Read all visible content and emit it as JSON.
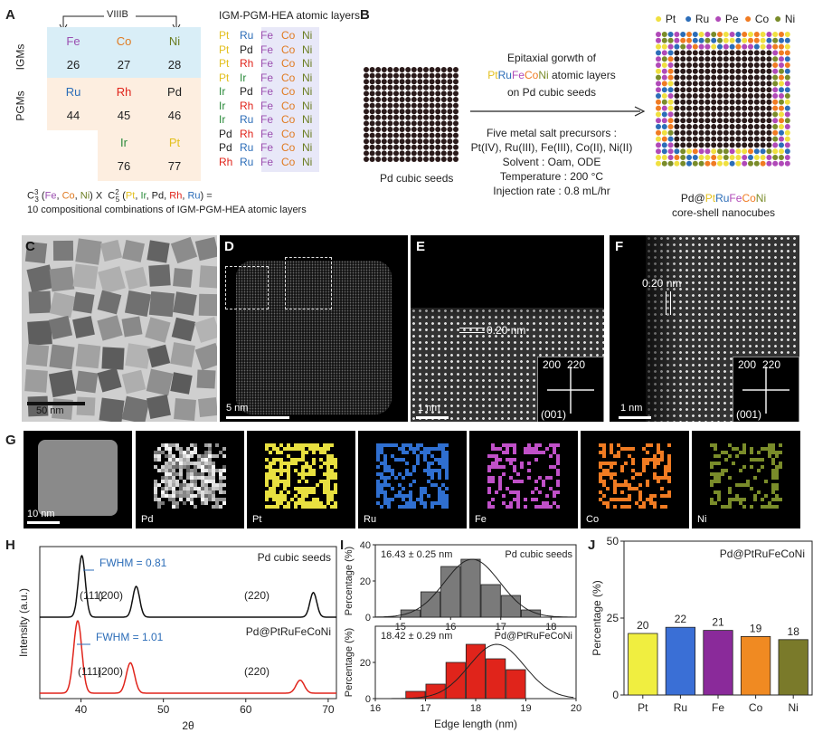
{
  "panels": {
    "A": {
      "label": "A",
      "group_label": "VIIIB",
      "row_labels": [
        "IGMs",
        "PGMs"
      ],
      "elements": [
        {
          "sym": "Fe",
          "num": "26",
          "color": "#9b4fb0",
          "bg": "#d9eef7"
        },
        {
          "sym": "Co",
          "num": "27",
          "color": "#e07b22",
          "bg": "#d9eef7"
        },
        {
          "sym": "Ni",
          "num": "28",
          "color": "#6b7d22",
          "bg": "#d9eef7"
        },
        {
          "sym": "Ru",
          "num": "44",
          "color": "#2c6db8",
          "bg": "#fdeee0"
        },
        {
          "sym": "Rh",
          "num": "45",
          "color": "#e0241b",
          "bg": "#fdeee0"
        },
        {
          "sym": "Pd",
          "num": "46",
          "color": "#222222",
          "bg": "#fdeee0"
        },
        {
          "sym": "Ir",
          "num": "76",
          "color": "#2a8a3a",
          "bg": "#fdeee0"
        },
        {
          "sym": "Pt",
          "num": "77",
          "color": "#e3c020",
          "bg": "#fdeee0"
        }
      ],
      "layers_title": "IGM-PGM-HEA atomic layers",
      "layers": [
        [
          "Pt",
          "Ru"
        ],
        [
          "Pt",
          "Pd"
        ],
        [
          "Pt",
          "Rh"
        ],
        [
          "Pt",
          "Ir"
        ],
        [
          "Ir",
          "Pd"
        ],
        [
          "Ir",
          "Rh"
        ],
        [
          "Ir",
          "Ru"
        ],
        [
          "Pd",
          "Rh"
        ],
        [
          "Pd",
          "Ru"
        ],
        [
          "Rh",
          "Ru"
        ]
      ],
      "layer_suffix": [
        "Fe",
        "Co",
        "Ni"
      ],
      "formula_line": "C₃³ (Fe, Co, Ni) X C₅² (Pt, Ir, Pd, Rh, Ru) =",
      "formula_line2": "10 compositional combinations of IGM-PGM-HEA atomic layers"
    },
    "B": {
      "label": "B",
      "legend": [
        "Pt",
        "Ru",
        "Pe",
        "Co",
        "Ni"
      ],
      "seed_caption": "Pd cubic seeds",
      "arrow_text1": "Epitaxial gorwth of",
      "arrow_text2": "PtRuFeCoNi atomic layers",
      "arrow_text3": "on Pd cubic seeds",
      "conditions": [
        "Five metal salt precursors :",
        "Pt(IV), Ru(III), Fe(III), Co(II), Ni(II)",
        "Solvent : Oam, ODE",
        "Temperature : 200 °C",
        "Injection rate : 0.8 mL/hr"
      ],
      "product_caption1": "Pd@PtRuFeCoNi",
      "product_caption2": "core-shell nanocubes"
    },
    "C": {
      "label": "C",
      "scale": "50 nm"
    },
    "D": {
      "label": "D",
      "scale": "5 nm"
    },
    "E": {
      "label": "E",
      "scale": "1 nm",
      "spacing": "0.20 nm",
      "fft": [
        "200",
        "220",
        "(001)"
      ]
    },
    "F": {
      "label": "F",
      "scale": "1 nm",
      "spacing": "0.20 nm",
      "fft": [
        "200",
        "220",
        "(001)"
      ]
    },
    "G": {
      "label": "G",
      "scale": "10 nm",
      "maps": [
        "Pd",
        "Pt",
        "Ru",
        "Fe",
        "Co",
        "Ni"
      ]
    },
    "H": {
      "label": "H"
    },
    "I": {
      "label": "I"
    },
    "J": {
      "label": "J"
    }
  },
  "colors": {
    "Pt": "#f0e040",
    "Ru": "#2c6db8",
    "Fe": "#b049b8",
    "Co": "#f07b22",
    "Ni": "#7a8c2a",
    "Pd": "#222222",
    "Rh": "#e0241b",
    "Ir": "#2a8a3a"
  },
  "chart_data": [
    {
      "type": "line",
      "panel": "H",
      "xlabel": "2θ",
      "ylabel": "Intensity (a.u.)",
      "xlim": [
        35,
        71
      ],
      "xticks": [
        "40",
        "50",
        "60",
        "70"
      ],
      "series": [
        {
          "name": "Pd cubic seeds",
          "color": "#111111",
          "peaks": [
            {
              "x": 40.1,
              "h": 1.0
            },
            {
              "x": 46.7,
              "h": 0.5
            },
            {
              "x": 68.2,
              "h": 0.4
            }
          ],
          "fwhm": "FWHM = 0.81"
        },
        {
          "name": "Pd@PtRuFeCoNi",
          "color": "#e0241b",
          "peaks": [
            {
              "x": 39.6,
              "h": 1.0
            },
            {
              "x": 46.0,
              "h": 0.42
            },
            {
              "x": 66.6,
              "h": 0.18
            }
          ],
          "fwhm": "FWHM = 1.01"
        }
      ],
      "peak_labels": [
        "(111)",
        "(200)",
        "(220)"
      ]
    },
    {
      "type": "bar",
      "panel": "I",
      "xlabel": "Edge length (nm)",
      "ylabel": "Percentage (%)",
      "subplots": [
        {
          "name": "Pd cubic seeds",
          "color": "#7a7a7a",
          "stat": "16.43 ± 0.25 nm",
          "xlim": [
            14.5,
            18.5
          ],
          "xticks": [
            "15",
            "16",
            "17",
            "18"
          ],
          "ylim": [
            0,
            40
          ],
          "yticks": [
            "0",
            "20",
            "40"
          ],
          "bins": [
            15.2,
            15.6,
            16.0,
            16.4,
            16.8,
            17.2,
            17.6
          ],
          "values": [
            4,
            14,
            28,
            32,
            18,
            12,
            4
          ]
        },
        {
          "name": "Pd@PtRuFeCoNi",
          "color": "#e0241b",
          "stat": "18.42 ± 0.29 nm",
          "xlim": [
            16,
            20
          ],
          "xticks": [
            "16",
            "17",
            "18",
            "19",
            "20"
          ],
          "ylim": [
            0,
            40
          ],
          "yticks": [
            "0",
            "20"
          ],
          "bins": [
            16.8,
            17.2,
            17.6,
            18.0,
            18.4,
            18.8,
            19.2
          ],
          "values": [
            4,
            8,
            20,
            30,
            22,
            16,
            0
          ]
        }
      ]
    },
    {
      "type": "bar",
      "panel": "J",
      "title": "Pd@PtRuFeCoNi",
      "ylabel": "Percentage (%)",
      "ylim": [
        0,
        50
      ],
      "yticks": [
        "0",
        "25",
        "50"
      ],
      "categories": [
        "Pt",
        "Ru",
        "Fe",
        "Co",
        "Ni"
      ],
      "values": [
        20,
        22,
        21,
        19,
        18
      ],
      "colors": [
        "#f0ee40",
        "#3a6fd6",
        "#8a2a9a",
        "#f08a22",
        "#7a7a2a"
      ]
    }
  ]
}
